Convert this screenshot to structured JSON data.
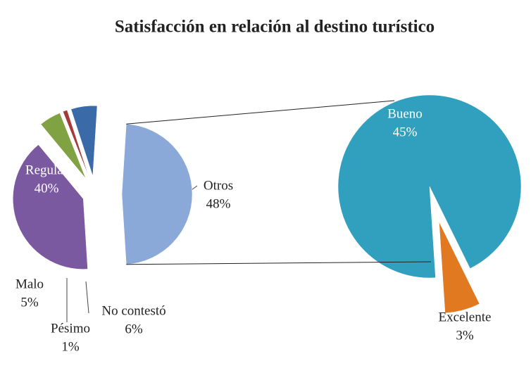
{
  "chart_data": {
    "type": "pie",
    "title": "Satisfacción en relación al destino turístico",
    "categories": [
      "Regular",
      "Malo",
      "Pésimo",
      "No contestó",
      "Otros"
    ],
    "values": [
      40,
      5,
      1,
      6,
      48
    ],
    "value_labels": [
      "40%",
      "5%",
      "1%",
      "6%",
      "48%"
    ],
    "colors": [
      "#7b59a1",
      "#80a243",
      "#a23b39",
      "#3b6aa8",
      "#8ba9d8"
    ],
    "detail": {
      "categories": [
        "Bueno",
        "Excelente"
      ],
      "values": [
        45,
        3
      ],
      "value_labels": [
        "45%",
        "3%"
      ],
      "colors": [
        "#31a0bf",
        "#e0791f"
      ]
    }
  }
}
